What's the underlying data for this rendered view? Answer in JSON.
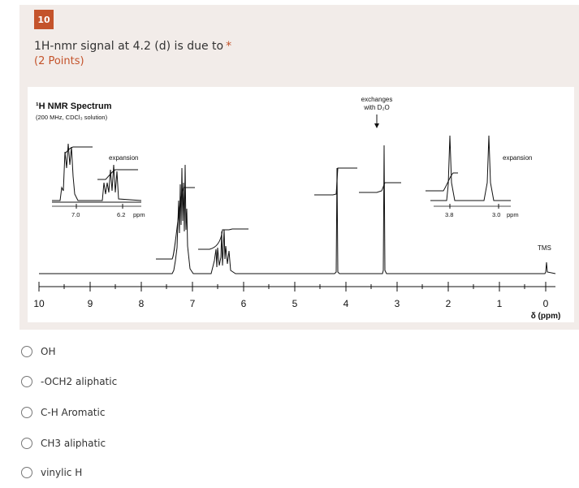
{
  "question": {
    "number": "10",
    "title": "1H-nmr signal at 4.2 (d) is due to",
    "required_mark": "*",
    "points": "(2 Points)"
  },
  "spectrum": {
    "title": "¹H NMR Spectrum",
    "subtitle": "(200 MHz, CDCl₃ solution)",
    "annotation_exchange_1": "exchanges",
    "annotation_exchange_2": "with D₂O",
    "expansion_left_label": "expansion",
    "expansion_right_label": "expansion",
    "expansion_left_ticks": [
      "7.0",
      "6.2"
    ],
    "expansion_left_unit": "ppm",
    "expansion_right_ticks": [
      "3.8",
      "3.0"
    ],
    "expansion_right_unit": "ppm",
    "tms_label": "TMS",
    "axis_ticks": [
      "10",
      "9",
      "8",
      "7",
      "6",
      "5",
      "4",
      "3",
      "2",
      "1",
      "0"
    ],
    "axis_unit": "δ (ppm)"
  },
  "options": [
    {
      "label": "OH"
    },
    {
      "label": "-OCH2 aliphatic"
    },
    {
      "label": "C-H Aromatic"
    },
    {
      "label": "CH3 aliphatic"
    },
    {
      "label": "vinylic H"
    }
  ]
}
